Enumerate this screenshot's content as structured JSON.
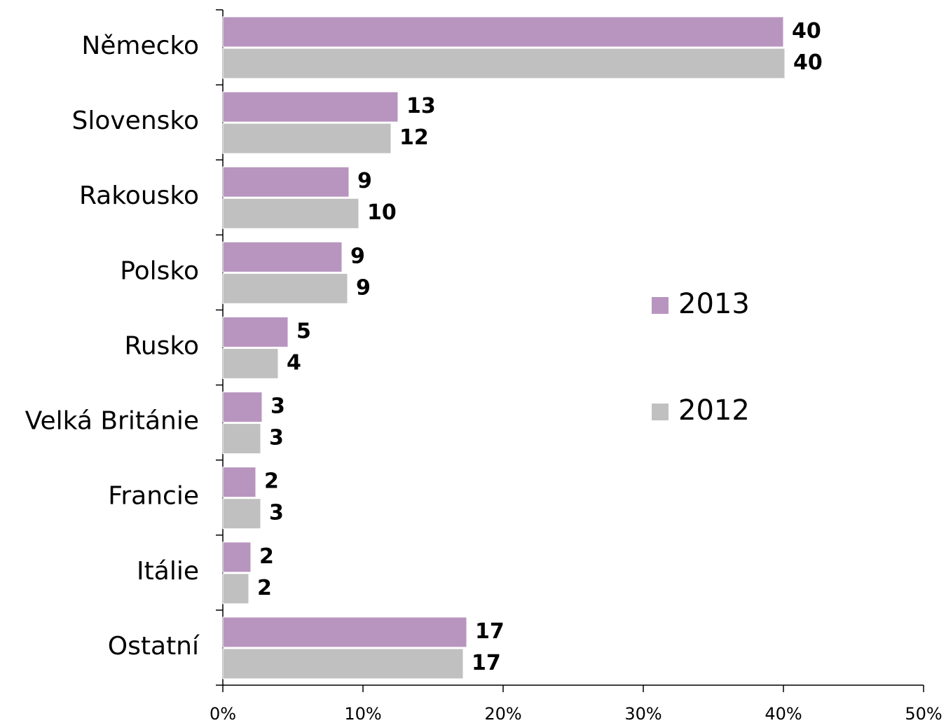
{
  "chart_data": {
    "type": "bar",
    "orientation": "horizontal",
    "categories": [
      "Německo",
      "Slovensko",
      "Rakousko",
      "Polsko",
      "Rusko",
      "Velká Británie",
      "Francie",
      "Itálie",
      "Ostatní"
    ],
    "series": [
      {
        "name": "2013",
        "color": "#b895bf",
        "values": [
          40.0,
          12.5,
          9.0,
          8.5,
          4.65,
          2.8,
          2.35,
          2.0,
          17.4
        ],
        "value_labels": [
          40,
          13,
          9,
          9,
          5,
          3,
          2,
          2,
          17
        ]
      },
      {
        "name": "2012",
        "color": "#c0c0c0",
        "values": [
          40.1,
          12.0,
          9.7,
          8.9,
          3.95,
          2.7,
          2.7,
          1.85,
          17.15
        ],
        "value_labels": [
          40,
          12,
          10,
          9,
          4,
          3,
          3,
          2,
          17
        ]
      }
    ],
    "xlim": [
      0,
      50
    ],
    "xticks": [
      {
        "value": 0,
        "label": "0%"
      },
      {
        "value": 10,
        "label": "10%"
      },
      {
        "value": 20,
        "label": "20%"
      },
      {
        "value": 30,
        "label": "30%"
      },
      {
        "value": 40,
        "label": "40%"
      },
      {
        "value": 50,
        "label": "50%"
      }
    ],
    "legend": "right"
  }
}
